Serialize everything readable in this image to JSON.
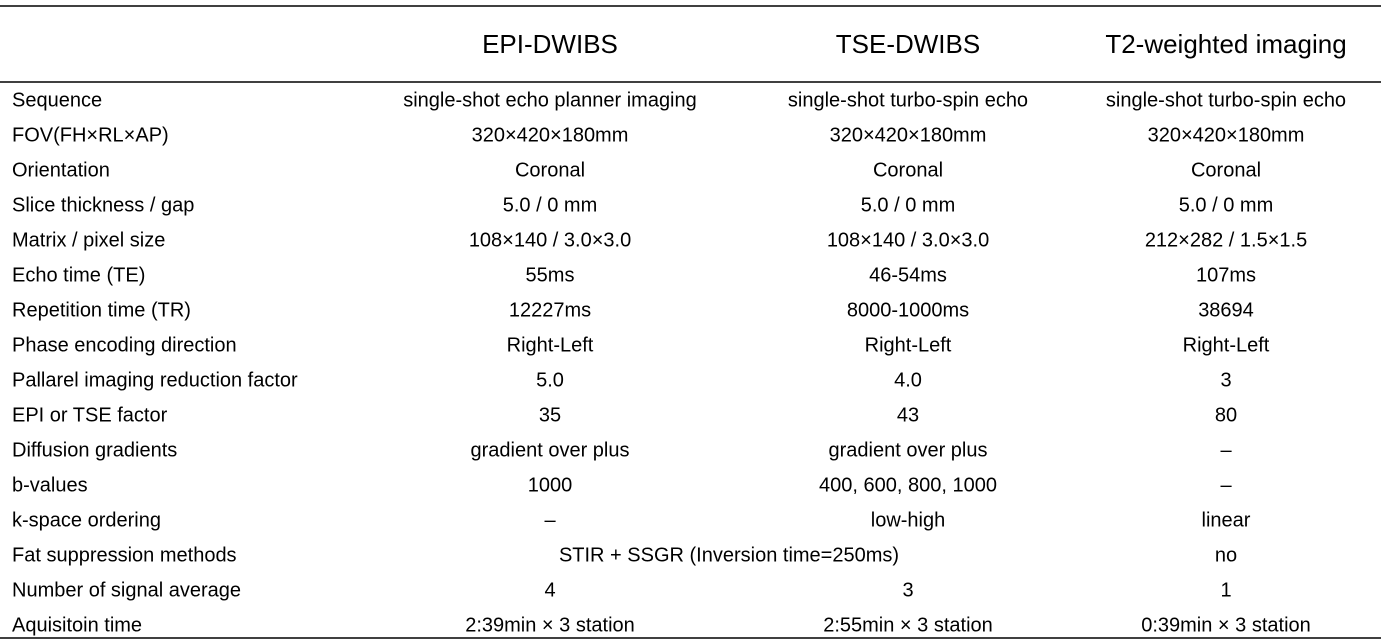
{
  "table": {
    "header": [
      "EPI-DWIBS",
      "TSE-DWIBS",
      "T2-weighted imaging"
    ],
    "rows": [
      [
        "Sequence",
        "single-shot echo planner imaging",
        "single-shot turbo-spin echo",
        "single-shot turbo-spin echo"
      ],
      [
        "FOV(FH×RL×AP)",
        "320×420×180mm",
        "320×420×180mm",
        "320×420×180mm"
      ],
      [
        "Orientation",
        "Coronal",
        "Coronal",
        "Coronal"
      ],
      [
        "Slice thickness / gap",
        "5.0 / 0 mm",
        "5.0 / 0 mm",
        "5.0 / 0 mm"
      ],
      [
        "Matrix / pixel size",
        "108×140 / 3.0×3.0",
        "108×140 / 3.0×3.0",
        "212×282 / 1.5×1.5"
      ],
      [
        "Echo time (TE)",
        "55ms",
        "46-54ms",
        "107ms"
      ],
      [
        "Repetition time (TR)",
        "12227ms",
        "8000-1000ms",
        "38694"
      ],
      [
        "Phase encoding direction",
        "Right-Left",
        "Right-Left",
        "Right-Left"
      ],
      [
        "Pallarel imaging reduction factor",
        "5.0",
        "4.0",
        "3"
      ],
      [
        "EPI or TSE factor",
        "35",
        "43",
        "80"
      ],
      [
        "Diffusion gradients",
        "gradient over plus",
        "gradient over plus",
        "–"
      ],
      [
        "b-values",
        "1000",
        "400, 600, 800, 1000",
        "–"
      ],
      [
        "k-space ordering",
        "–",
        "low-high",
        "linear"
      ],
      [
        "Fat suppression methods",
        "STIR + SSGR (Inversion time=250ms)",
        "no"
      ],
      [
        "Number of signal average",
        "4",
        "3",
        "1"
      ],
      [
        "Aquisitoin time",
        "2:39min × 3 station",
        "2:55min × 3 station",
        "0:39min × 3 station"
      ]
    ]
  }
}
